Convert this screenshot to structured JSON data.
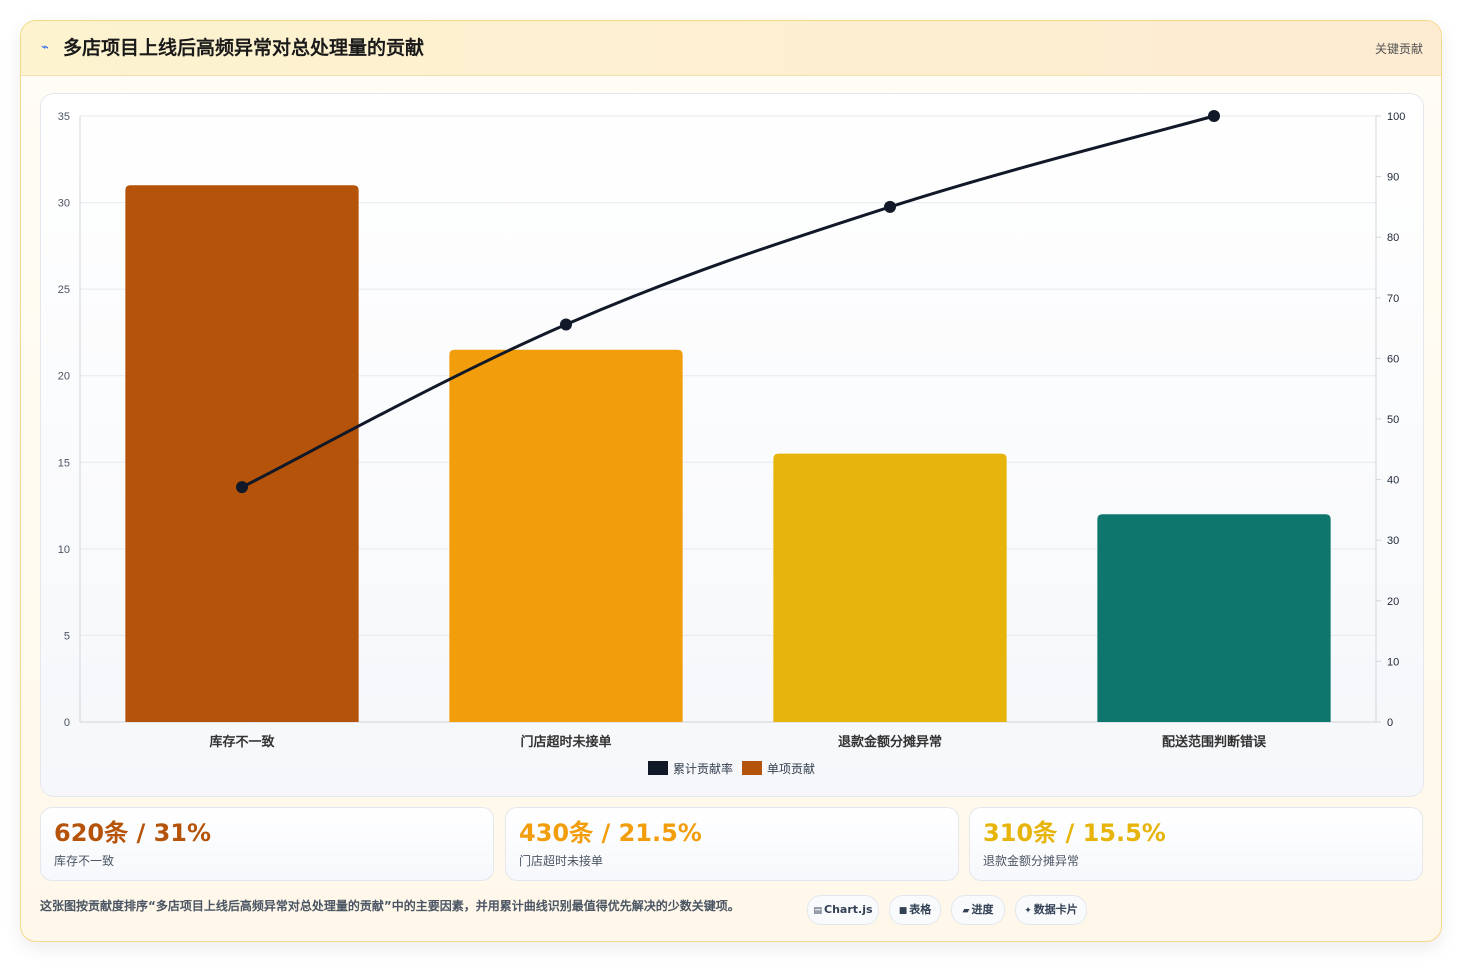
{
  "header": {
    "icon": "chart-line-icon",
    "title": "多店项目上线后高频异常对总处理量的贡献",
    "tag": "关键贡献"
  },
  "chart_data": {
    "type": "bar",
    "categories": [
      "库存不一致",
      "门店超时未接单",
      "退款金额分摊异常",
      "配送范围判断错误"
    ],
    "series": [
      {
        "name": "单项贡献",
        "type": "bar",
        "axis": "left",
        "values": [
          31,
          21.5,
          15.5,
          12
        ],
        "colors": [
          "#b45309",
          "#f29e0c",
          "#e7b40b",
          "#0f766e"
        ]
      },
      {
        "name": "累计贡献率",
        "type": "line",
        "axis": "right",
        "values": [
          38.75,
          65.6,
          85,
          100
        ],
        "color": "#111827"
      }
    ],
    "y_left": {
      "min": 0,
      "max": 35,
      "ticks": [
        0,
        5,
        10,
        15,
        20,
        25,
        30,
        35
      ]
    },
    "y_right": {
      "min": 0,
      "max": 100,
      "ticks": [
        0,
        10,
        20,
        30,
        40,
        50,
        60,
        70,
        80,
        90,
        100
      ]
    },
    "legend_position": "bottom-center",
    "grid": true
  },
  "stats": [
    {
      "value": "620条 / 31%",
      "label": "库存不一致",
      "color": "#b45309"
    },
    {
      "value": "430条 / 21.5%",
      "label": "门店超时未接单",
      "color": "#f29e0c"
    },
    {
      "value": "310条 / 15.5%",
      "label": "退款金额分摊异常",
      "color": "#e7b40b"
    }
  ],
  "footer": {
    "text": "这张图按贡献度排序“多店项目上线后高频异常对总处理量的贡献”中的主要因素，并用累计曲线识别最值得优先解决的少数关键项。",
    "chips": [
      {
        "icon": "▤",
        "icon_name": "chart-icon",
        "label": "Chart.js"
      },
      {
        "icon": "■",
        "icon_name": "table-icon",
        "label": "表格"
      },
      {
        "icon": "▰",
        "icon_name": "progress-icon",
        "label": "进度"
      },
      {
        "icon": "✦",
        "icon_name": "sparkle-icon",
        "label": "数据卡片"
      }
    ]
  }
}
